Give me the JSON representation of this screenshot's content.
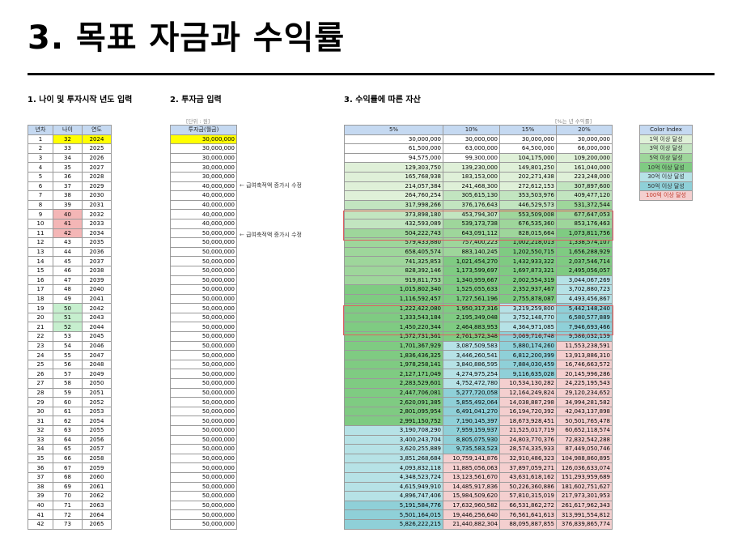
{
  "title": "3. 목표 자금과 수익률",
  "sections": {
    "age_year": "1. 나이 및 투자시작 년도 입력",
    "investment": "2. 투자금 입력",
    "assets": "3. 수익률에 따른 자산"
  },
  "notes": {
    "unit": "[단위 : 원]",
    "annual_rate": "[%는 년 수익률]",
    "adjust_1": "급여축적액 증가시 수정",
    "adjust_2": "급여축적액 증가시 수정"
  },
  "headers": {
    "year_no": "년차",
    "age": "나이",
    "year": "연도",
    "investment": "투자금(월금)",
    "rates": [
      "5%",
      "10%",
      "15%",
      "20%"
    ]
  },
  "rows": [
    {
      "n": "1",
      "age": "32",
      "year": "2024",
      "inv": "30,000,000",
      "r5": "30,000,000",
      "r10": "30,000,000",
      "r15": "30,000,000",
      "r20": "30,000,000"
    },
    {
      "n": "2",
      "age": "33",
      "year": "2025",
      "inv": "30,000,000",
      "r5": "61,500,000",
      "r10": "63,000,000",
      "r15": "64,500,000",
      "r20": "66,000,000"
    },
    {
      "n": "3",
      "age": "34",
      "year": "2026",
      "inv": "30,000,000",
      "r5": "94,575,000",
      "r10": "99,300,000",
      "r15": "104,175,000",
      "r20": "109,200,000"
    },
    {
      "n": "4",
      "age": "35",
      "year": "2027",
      "inv": "30,000,000",
      "r5": "129,303,750",
      "r10": "139,230,000",
      "r15": "149,801,250",
      "r20": "161,040,000"
    },
    {
      "n": "5",
      "age": "36",
      "year": "2028",
      "inv": "30,000,000",
      "r5": "165,768,938",
      "r10": "183,153,000",
      "r15": "202,271,438",
      "r20": "223,248,000"
    },
    {
      "n": "6",
      "age": "37",
      "year": "2029",
      "inv": "40,000,000",
      "r5": "214,057,384",
      "r10": "241,468,300",
      "r15": "272,612,153",
      "r20": "307,897,600"
    },
    {
      "n": "7",
      "age": "38",
      "year": "2030",
      "inv": "40,000,000",
      "r5": "264,760,254",
      "r10": "305,615,130",
      "r15": "353,503,976",
      "r20": "409,477,120"
    },
    {
      "n": "8",
      "age": "39",
      "year": "2031",
      "inv": "40,000,000",
      "r5": "317,998,266",
      "r10": "376,176,643",
      "r15": "446,529,573",
      "r20": "531,372,544"
    },
    {
      "n": "9",
      "age": "40",
      "year": "2032",
      "inv": "40,000,000",
      "r5": "373,898,180",
      "r10": "453,794,307",
      "r15": "553,509,008",
      "r20": "677,647,053"
    },
    {
      "n": "10",
      "age": "41",
      "year": "2033",
      "inv": "40,000,000",
      "r5": "432,593,089",
      "r10": "539,173,738",
      "r15": "676,535,360",
      "r20": "853,176,463"
    },
    {
      "n": "11",
      "age": "42",
      "year": "2034",
      "inv": "50,000,000",
      "r5": "504,222,743",
      "r10": "643,091,112",
      "r15": "828,015,664",
      "r20": "1,073,811,756"
    },
    {
      "n": "12",
      "age": "43",
      "year": "2035",
      "inv": "50,000,000",
      "r5": "579,433,880",
      "r10": "757,400,223",
      "r15": "1,002,218,013",
      "r20": "1,338,574,107"
    },
    {
      "n": "13",
      "age": "44",
      "year": "2036",
      "inv": "50,000,000",
      "r5": "658,405,574",
      "r10": "883,140,245",
      "r15": "1,202,550,715",
      "r20": "1,656,288,929"
    },
    {
      "n": "14",
      "age": "45",
      "year": "2037",
      "inv": "50,000,000",
      "r5": "741,325,853",
      "r10": "1,021,454,270",
      "r15": "1,432,933,322",
      "r20": "2,037,546,714"
    },
    {
      "n": "15",
      "age": "46",
      "year": "2038",
      "inv": "50,000,000",
      "r5": "828,392,146",
      "r10": "1,173,599,697",
      "r15": "1,697,873,321",
      "r20": "2,495,056,057"
    },
    {
      "n": "16",
      "age": "47",
      "year": "2039",
      "inv": "50,000,000",
      "r5": "919,811,753",
      "r10": "1,340,959,667",
      "r15": "2,002,554,319",
      "r20": "3,044,067,269"
    },
    {
      "n": "17",
      "age": "48",
      "year": "2040",
      "inv": "50,000,000",
      "r5": "1,015,802,340",
      "r10": "1,525,055,633",
      "r15": "2,352,937,467",
      "r20": "3,702,880,723"
    },
    {
      "n": "18",
      "age": "49",
      "year": "2041",
      "inv": "50,000,000",
      "r5": "1,116,592,457",
      "r10": "1,727,561,196",
      "r15": "2,755,878,087",
      "r20": "4,493,456,867"
    },
    {
      "n": "19",
      "age": "50",
      "year": "2042",
      "inv": "50,000,000",
      "r5": "1,222,422,080",
      "r10": "1,950,317,316",
      "r15": "3,219,259,800",
      "r20": "5,442,148,240"
    },
    {
      "n": "20",
      "age": "51",
      "year": "2043",
      "inv": "50,000,000",
      "r5": "1,333,543,184",
      "r10": "2,195,349,048",
      "r15": "3,752,148,770",
      "r20": "6,580,577,889"
    },
    {
      "n": "21",
      "age": "52",
      "year": "2044",
      "inv": "50,000,000",
      "r5": "1,450,220,344",
      "r10": "2,464,883,953",
      "r15": "4,364,971,085",
      "r20": "7,946,693,466"
    },
    {
      "n": "22",
      "age": "53",
      "year": "2045",
      "inv": "50,000,000",
      "r5": "1,572,731,361",
      "r10": "2,761,372,348",
      "r15": "5,069,716,748",
      "r20": "9,586,032,159"
    },
    {
      "n": "23",
      "age": "54",
      "year": "2046",
      "inv": "50,000,000",
      "r5": "1,701,367,929",
      "r10": "3,087,509,583",
      "r15": "5,880,174,260",
      "r20": "11,553,238,591"
    },
    {
      "n": "24",
      "age": "55",
      "year": "2047",
      "inv": "50,000,000",
      "r5": "1,836,436,325",
      "r10": "3,446,260,541",
      "r15": "6,812,200,399",
      "r20": "13,913,886,310"
    },
    {
      "n": "25",
      "age": "56",
      "year": "2048",
      "inv": "50,000,000",
      "r5": "1,978,258,141",
      "r10": "3,840,886,595",
      "r15": "7,884,030,459",
      "r20": "16,746,663,572"
    },
    {
      "n": "26",
      "age": "57",
      "year": "2049",
      "inv": "50,000,000",
      "r5": "2,127,171,049",
      "r10": "4,274,975,254",
      "r15": "9,116,635,028",
      "r20": "20,145,996,286"
    },
    {
      "n": "27",
      "age": "58",
      "year": "2050",
      "inv": "50,000,000",
      "r5": "2,283,529,601",
      "r10": "4,752,472,780",
      "r15": "10,534,130,282",
      "r20": "24,225,195,543"
    },
    {
      "n": "28",
      "age": "59",
      "year": "2051",
      "inv": "50,000,000",
      "r5": "2,447,706,081",
      "r10": "5,277,720,058",
      "r15": "12,164,249,824",
      "r20": "29,120,234,652"
    },
    {
      "n": "29",
      "age": "60",
      "year": "2052",
      "inv": "50,000,000",
      "r5": "2,620,091,385",
      "r10": "5,855,492,064",
      "r15": "14,038,887,298",
      "r20": "34,994,281,582"
    },
    {
      "n": "30",
      "age": "61",
      "year": "2053",
      "inv": "50,000,000",
      "r5": "2,801,095,954",
      "r10": "6,491,041,270",
      "r15": "16,194,720,392",
      "r20": "42,043,137,898"
    },
    {
      "n": "31",
      "age": "62",
      "year": "2054",
      "inv": "50,000,000",
      "r5": "2,991,150,752",
      "r10": "7,190,145,397",
      "r15": "18,673,928,451",
      "r20": "50,501,765,478"
    },
    {
      "n": "32",
      "age": "63",
      "year": "2055",
      "inv": "50,000,000",
      "r5": "3,190,708,290",
      "r10": "7,959,159,937",
      "r15": "21,525,017,719",
      "r20": "60,652,118,574"
    },
    {
      "n": "33",
      "age": "64",
      "year": "2056",
      "inv": "50,000,000",
      "r5": "3,400,243,704",
      "r10": "8,805,075,930",
      "r15": "24,803,770,376",
      "r20": "72,832,542,288"
    },
    {
      "n": "34",
      "age": "65",
      "year": "2057",
      "inv": "50,000,000",
      "r5": "3,620,255,889",
      "r10": "9,735,583,523",
      "r15": "28,574,335,933",
      "r20": "87,449,050,746"
    },
    {
      "n": "35",
      "age": "66",
      "year": "2058",
      "inv": "50,000,000",
      "r5": "3,851,268,684",
      "r10": "10,759,141,876",
      "r15": "32,910,486,323",
      "r20": "104,988,860,895"
    },
    {
      "n": "36",
      "age": "67",
      "year": "2059",
      "inv": "50,000,000",
      "r5": "4,093,832,118",
      "r10": "11,885,056,063",
      "r15": "37,897,059,271",
      "r20": "126,036,633,074"
    },
    {
      "n": "37",
      "age": "68",
      "year": "2060",
      "inv": "50,000,000",
      "r5": "4,348,523,724",
      "r10": "13,123,561,670",
      "r15": "43,631,618,162",
      "r20": "151,293,959,689"
    },
    {
      "n": "38",
      "age": "69",
      "year": "2061",
      "inv": "50,000,000",
      "r5": "4,615,949,910",
      "r10": "14,485,917,836",
      "r15": "50,226,360,886",
      "r20": "181,602,751,627"
    },
    {
      "n": "39",
      "age": "70",
      "year": "2062",
      "inv": "50,000,000",
      "r5": "4,896,747,406",
      "r10": "15,984,509,620",
      "r15": "57,810,315,019",
      "r20": "217,973,301,953"
    },
    {
      "n": "40",
      "age": "71",
      "year": "2063",
      "inv": "50,000,000",
      "r5": "5,191,584,776",
      "r10": "17,632,960,582",
      "r15": "66,531,862,272",
      "r20": "261,617,962,343"
    },
    {
      "n": "41",
      "age": "72",
      "year": "2064",
      "inv": "50,000,000",
      "r5": "5,501,164,015",
      "r10": "19,446,256,640",
      "r15": "76,561,641,613",
      "r20": "313,991,554,812"
    },
    {
      "n": "42",
      "age": "73",
      "year": "2065",
      "inv": "50,000,000",
      "r5": "5,826,222,215",
      "r10": "21,440,882,304",
      "r15": "88,095,887,855",
      "r20": "376,839,865,774"
    }
  ],
  "legend": {
    "title": "Color Index",
    "items": [
      "1억 이상 달성",
      "3억 이상 달성",
      "5억 이상 달성",
      "10억 이상 달성",
      "30억 이상 달성",
      "50억 이상 달성",
      "100억 이상 달성"
    ],
    "colors": [
      "#dff0d8",
      "#c2e5c0",
      "#9ed69b",
      "#7fcb82",
      "#b6e2e6",
      "#8fd0d8",
      "#f4cfcf"
    ]
  },
  "colors": {
    "header": "#c5d9f1",
    "input_yellow": "#ffff00",
    "age_pink": "#f4b6b6",
    "age_green": "#c6efce",
    "highlight_box": "#e06060"
  }
}
